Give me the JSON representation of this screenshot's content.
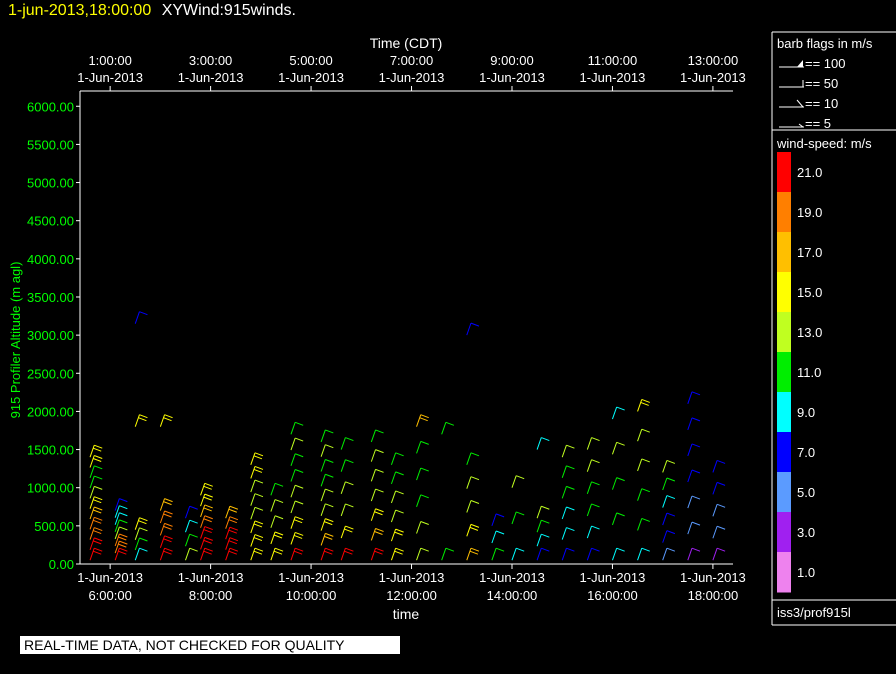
{
  "header": {
    "timestamp": "1-jun-2013,18:00:00",
    "title": "XYWind:915winds."
  },
  "quality_banner": "REAL-TIME DATA, NOT CHECKED FOR QUALITY",
  "chart_data": {
    "type": "scatter",
    "title": "XYWind:915winds.",
    "top_axis_label": "Time (CDT)",
    "top_ticks": [
      {
        "t": "1:00:00",
        "d": "1-Jun-2013"
      },
      {
        "t": "3:00:00",
        "d": "1-Jun-2013"
      },
      {
        "t": "5:00:00",
        "d": "1-Jun-2013"
      },
      {
        "t": "7:00:00",
        "d": "1-Jun-2013"
      },
      {
        "t": "9:00:00",
        "d": "1-Jun-2013"
      },
      {
        "t": "11:00:00",
        "d": "1-Jun-2013"
      },
      {
        "t": "13:00:00",
        "d": "1-Jun-2013"
      }
    ],
    "xlabel": "time",
    "bottom_ticks": [
      {
        "d": "1-Jun-2013",
        "t": "6:00:00"
      },
      {
        "d": "1-Jun-2013",
        "t": "8:00:00"
      },
      {
        "d": "1-Jun-2013",
        "t": "10:00:00"
      },
      {
        "d": "1-Jun-2013",
        "t": "12:00:00"
      },
      {
        "d": "1-Jun-2013",
        "t": "14:00:00"
      },
      {
        "d": "1-Jun-2013",
        "t": "16:00:00"
      },
      {
        "d": "1-Jun-2013",
        "t": "18:00:00"
      }
    ],
    "xlim_hours_utc": [
      5.4,
      18.4
    ],
    "ylabel": "915 Profiler Altitude (m agl)",
    "ylim": [
      0,
      6200
    ],
    "yticks": [
      "0.00",
      "500.00",
      "1000.00",
      "1500.00",
      "2000.00",
      "2500.00",
      "3000.00",
      "3500.00",
      "4000.00",
      "4500.00",
      "5000.00",
      "5500.00",
      "6000.00"
    ],
    "legend_barbs": {
      "title": "barb flags in m/s",
      "items": [
        "== 100",
        "== 50",
        "== 10",
        "== 5"
      ]
    },
    "colorbar": {
      "title": "wind-speed: m/s",
      "labels": [
        "21.0",
        "19.0",
        "17.0",
        "15.0",
        "13.0",
        "11.0",
        "9.0",
        "7.0",
        "5.0",
        "3.0",
        "1.0"
      ],
      "colors": [
        "#ff0000",
        "#ff7f00",
        "#ffbf00",
        "#ffff00",
        "#c0ff20",
        "#00ee00",
        "#00ffff",
        "#0000ff",
        "#5b9bff",
        "#a020f0",
        "#ee82ee"
      ]
    },
    "footer_label": "iss3/prof915l",
    "profiles": [
      {
        "x": 5.6,
        "speeds": [
          21,
          21,
          20,
          19,
          17,
          15,
          13,
          11,
          11,
          15,
          15
        ],
        "top": 1400
      },
      {
        "x": 6.1,
        "speeds": [
          21,
          20,
          19,
          13,
          11,
          9,
          9,
          7
        ],
        "top": 700
      },
      {
        "x": 6.5,
        "speeds": [
          9,
          11,
          13,
          15
        ],
        "top": 450,
        "extra": [
          {
            "alt": 1800,
            "spd": 15
          },
          {
            "alt": 3150,
            "spd": 7
          }
        ]
      },
      {
        "x": 7.0,
        "speeds": [
          21,
          21,
          20,
          19,
          17
        ],
        "top": 700,
        "extra": [
          {
            "alt": 1800,
            "spd": 15
          }
        ]
      },
      {
        "x": 7.5,
        "speeds": [
          13,
          11,
          9,
          7
        ],
        "top": 600
      },
      {
        "x": 7.8,
        "speeds": [
          21,
          21,
          21,
          19,
          17,
          15,
          15
        ],
        "top": 900
      },
      {
        "x": 8.3,
        "speeds": [
          21,
          21,
          21,
          19,
          17
        ],
        "top": 600
      },
      {
        "x": 8.8,
        "speeds": [
          15,
          15,
          15,
          13,
          13,
          13,
          15,
          15
        ],
        "top": 1300
      },
      {
        "x": 9.2,
        "speeds": [
          15,
          15,
          13,
          13,
          11
        ],
        "top": 900
      },
      {
        "x": 9.6,
        "speeds": [
          21,
          15,
          15,
          13,
          13,
          11,
          11,
          13,
          11
        ],
        "top": 1700
      },
      {
        "x": 10.2,
        "speeds": [
          21,
          17,
          15,
          13,
          13,
          11,
          11,
          13,
          11
        ],
        "top": 1600
      },
      {
        "x": 10.6,
        "speeds": [
          21,
          15,
          13,
          13,
          11,
          11
        ],
        "top": 1500
      },
      {
        "x": 11.2,
        "speeds": [
          21,
          17,
          15,
          13,
          13,
          13,
          11
        ],
        "top": 1600
      },
      {
        "x": 11.6,
        "speeds": [
          15,
          15,
          13,
          13,
          11,
          11
        ],
        "top": 1300
      },
      {
        "x": 12.1,
        "speeds": [
          13,
          13,
          11,
          11,
          11,
          17
        ],
        "top": 1800
      },
      {
        "x": 12.6,
        "speeds": [
          11,
          11
        ],
        "top": 1700
      },
      {
        "x": 13.1,
        "speeds": [
          17,
          15,
          13,
          13,
          11
        ],
        "top": 1300,
        "extra": [
          {
            "alt": 3000,
            "spd": 7
          }
        ]
      },
      {
        "x": 13.6,
        "speeds": [
          11,
          9,
          7
        ],
        "top": 500
      },
      {
        "x": 14.0,
        "speeds": [
          9,
          11,
          13
        ],
        "top": 1000
      },
      {
        "x": 14.5,
        "speeds": [
          7,
          9,
          11,
          13
        ],
        "top": 600,
        "extra": [
          {
            "alt": 1500,
            "spd": 9
          }
        ]
      },
      {
        "x": 15.0,
        "speeds": [
          7,
          9,
          9,
          11,
          11,
          13
        ],
        "top": 1400
      },
      {
        "x": 15.5,
        "speeds": [
          7,
          9,
          11,
          11,
          13,
          13
        ],
        "top": 1500
      },
      {
        "x": 16.0,
        "speeds": [
          9,
          11,
          11,
          13,
          9
        ],
        "top": 1900
      },
      {
        "x": 16.5,
        "speeds": [
          9,
          11,
          11,
          13,
          13,
          15
        ],
        "top": 2000
      },
      {
        "x": 17.0,
        "speeds": [
          5,
          7,
          7,
          9,
          11,
          13
        ],
        "top": 1200
      },
      {
        "x": 17.5,
        "speeds": [
          3,
          5,
          5,
          7,
          7,
          7,
          7
        ],
        "top": 2100
      },
      {
        "x": 18.0,
        "speeds": [
          3,
          5,
          5,
          7,
          7
        ],
        "top": 1200
      }
    ]
  }
}
